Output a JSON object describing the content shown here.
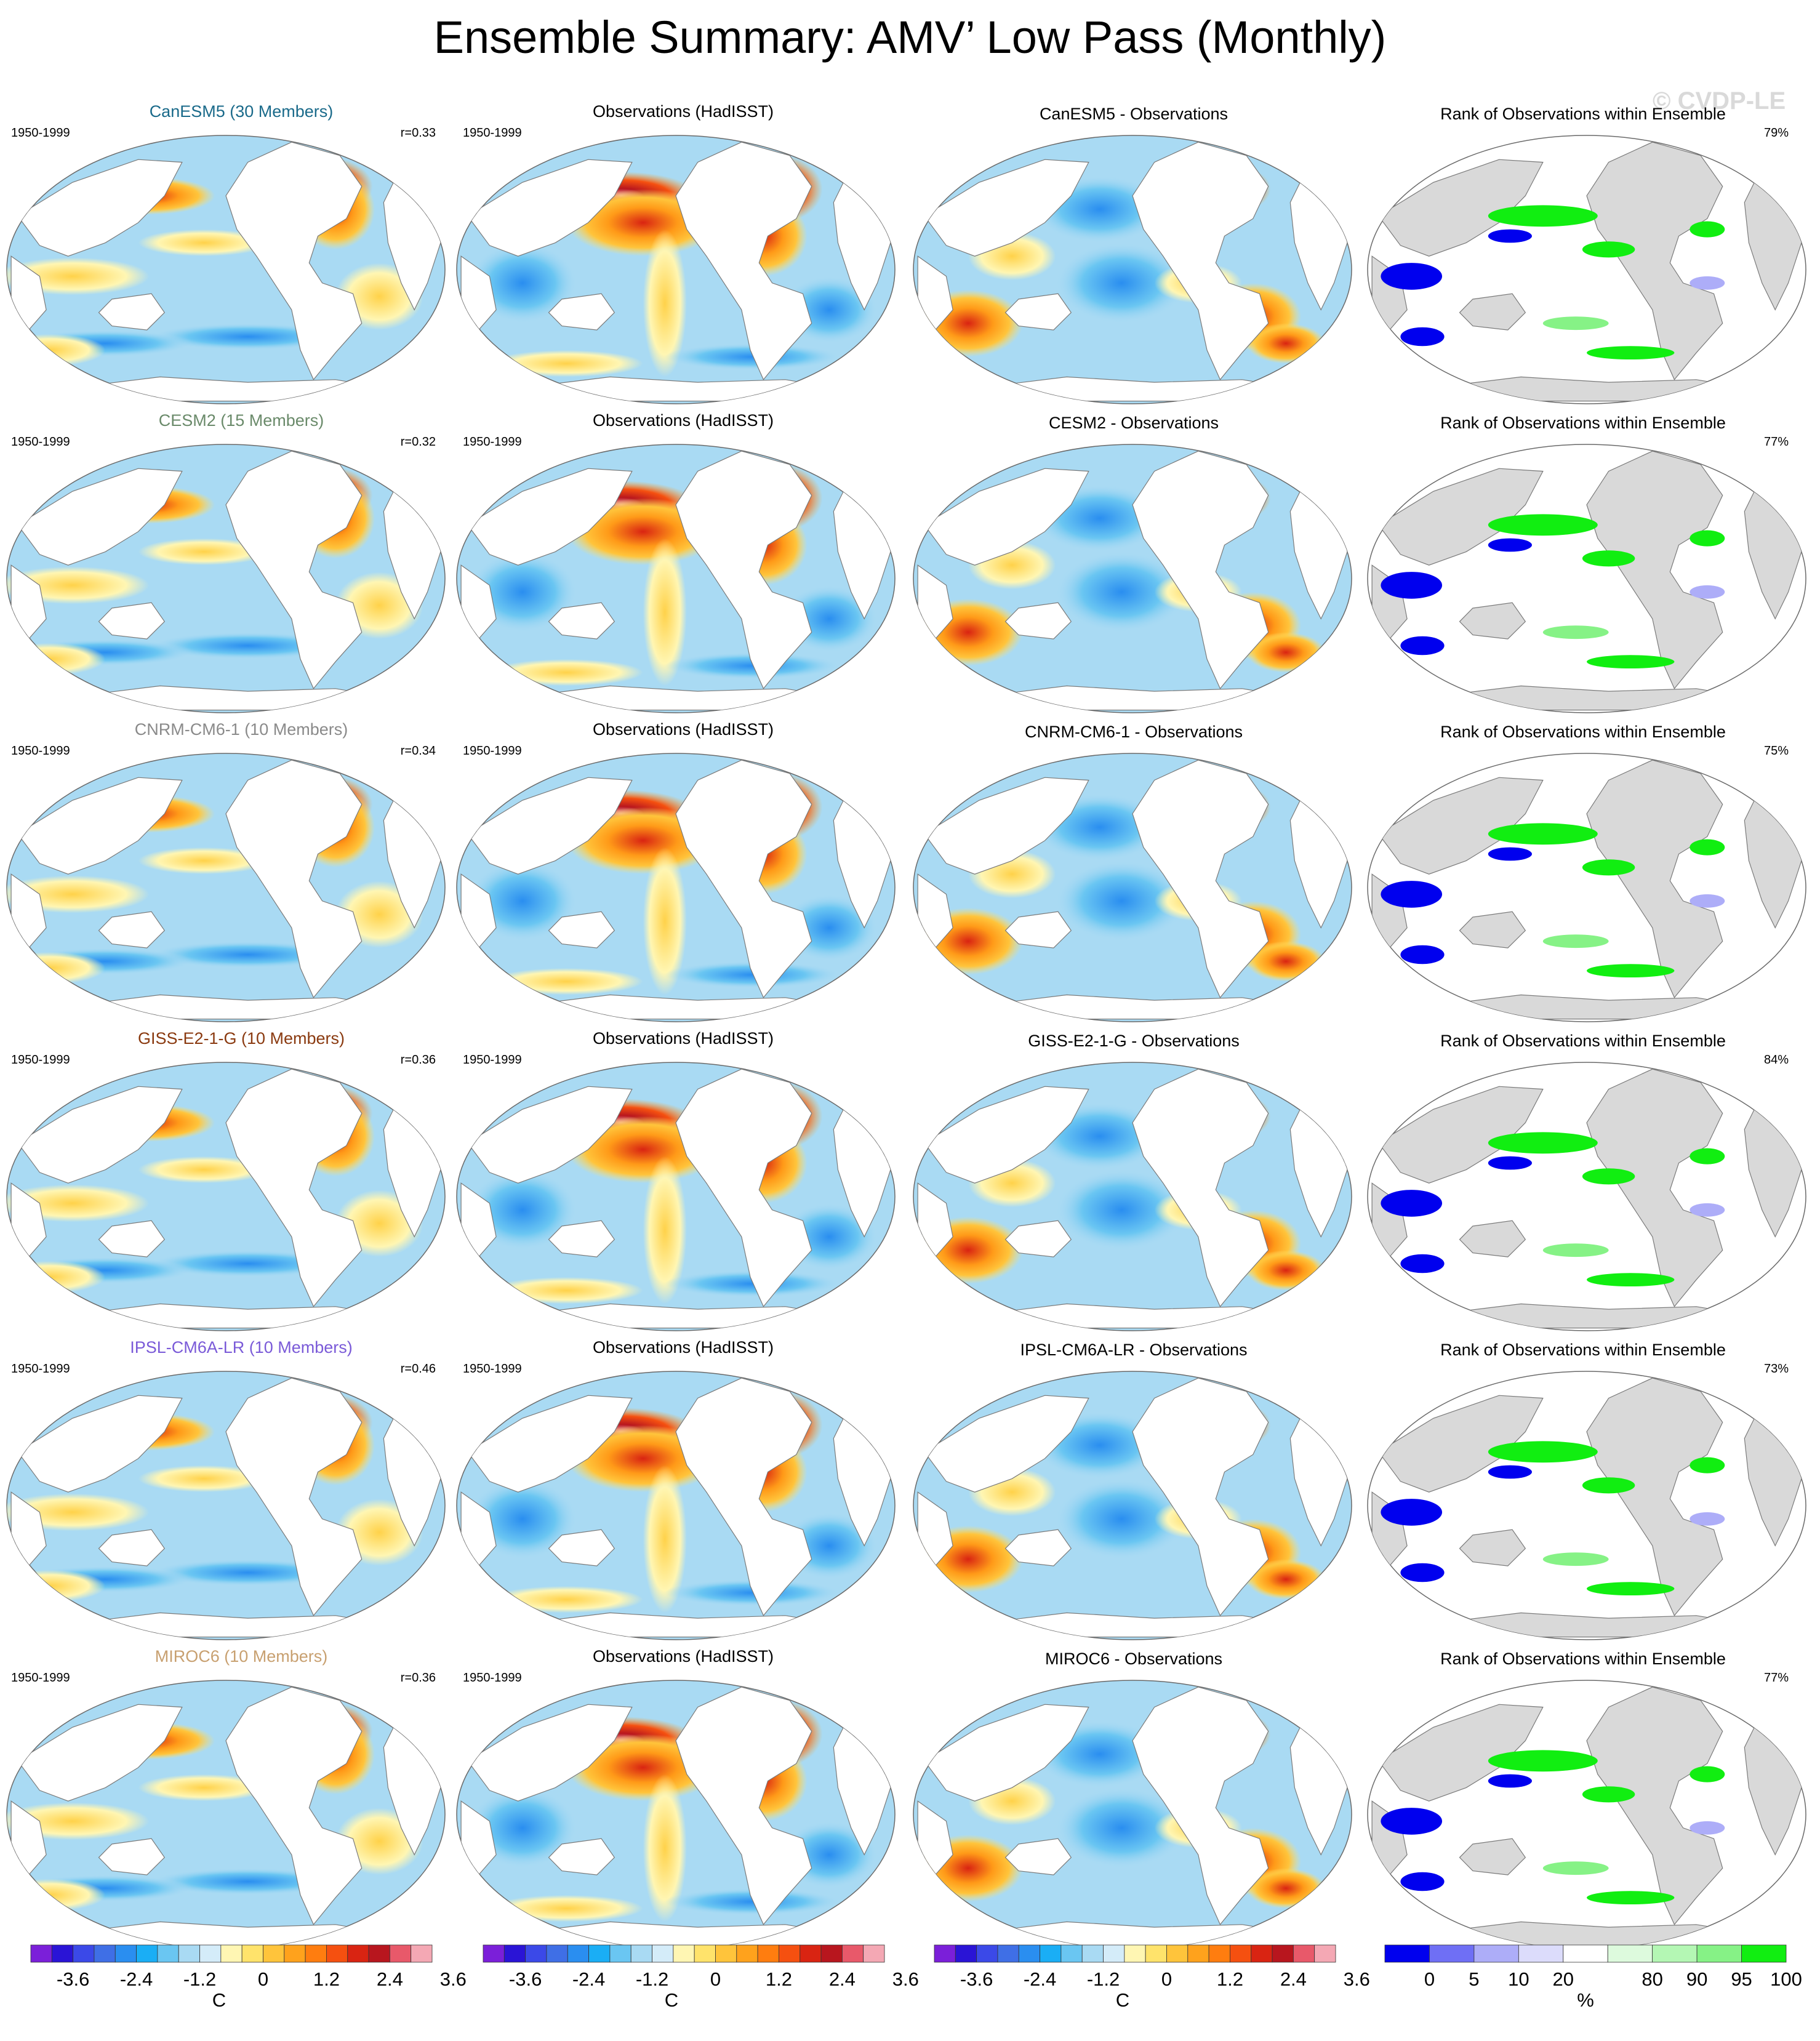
{
  "title": "Ensemble Summary: AMV’ Low Pass (Monthly)",
  "watermark": "© CVDP-LE",
  "period": "1950-1999",
  "obs_title": "Observations (HadISST)",
  "rank_title": "Rank of Observations within Ensemble",
  "colors": {
    "diverging": [
      "#7b1fd9",
      "#2a14d6",
      "#3b49e8",
      "#3f6fe6",
      "#2a8ef0",
      "#1aaef5",
      "#6ac6f2",
      "#a9daf3",
      "#d4ecf9",
      "#fff6b3",
      "#ffe36b",
      "#ffc43b",
      "#ffa21c",
      "#ff7d0f",
      "#f55010",
      "#d92412",
      "#b8161e",
      "#e8596a",
      "#f4a8b4"
    ],
    "rank": [
      "#0000ee",
      "#6f6ff5",
      "#adadf8",
      "#dcdcfb",
      "#ffffff",
      "#ddfadd",
      "#b4f7b4",
      "#86f286",
      "#11ee11"
    ],
    "ocean_blue": "#a9daf3",
    "land_gray": "#d9d9d9"
  },
  "rows": [
    {
      "model": "CanESM5 (30 Members)",
      "model_color": "#1a6a8a",
      "r": "r=0.33",
      "diff_title": "CanESM5 - Observations",
      "rank_pct": "79%"
    },
    {
      "model": "CESM2 (15 Members)",
      "model_color": "#6a8a6a",
      "r": "r=0.32",
      "diff_title": "CESM2 - Observations",
      "rank_pct": "77%"
    },
    {
      "model": "CNRM-CM6-1 (10 Members)",
      "model_color": "#8a8a8a",
      "r": "r=0.34",
      "diff_title": "CNRM-CM6-1 - Observations",
      "rank_pct": "75%"
    },
    {
      "model": "GISS-E2-1-G (10 Members)",
      "model_color": "#8a3a10",
      "r": "r=0.36",
      "diff_title": "GISS-E2-1-G - Observations",
      "rank_pct": "84%"
    },
    {
      "model": "IPSL-CM6A-LR (10 Members)",
      "model_color": "#7a5ad8",
      "r": "r=0.46",
      "diff_title": "IPSL-CM6A-LR - Observations",
      "rank_pct": "73%"
    },
    {
      "model": "MIROC6 (10 Members)",
      "model_color": "#c8a070",
      "r": "r=0.36",
      "diff_title": "MIROC6 - Observations",
      "rank_pct": "77%"
    }
  ],
  "chart_data": {
    "type": "heatmap",
    "projection": "global map",
    "colorbars": [
      {
        "labels": [
          "-3.6",
          "-2.4",
          "-1.2",
          "0",
          "1.2",
          "2.4",
          "3.6"
        ],
        "unit": "C"
      },
      {
        "labels": [
          "-3.6",
          "-2.4",
          "-1.2",
          "0",
          "1.2",
          "2.4",
          "3.6"
        ],
        "unit": "C"
      },
      {
        "labels": [
          "-3.6",
          "-2.4",
          "-1.2",
          "0",
          "1.2",
          "2.4",
          "3.6"
        ],
        "unit": "C"
      },
      {
        "labels": [
          "0",
          "5",
          "10",
          "20",
          "80",
          "90",
          "95",
          "100"
        ],
        "unit": "%"
      }
    ]
  }
}
